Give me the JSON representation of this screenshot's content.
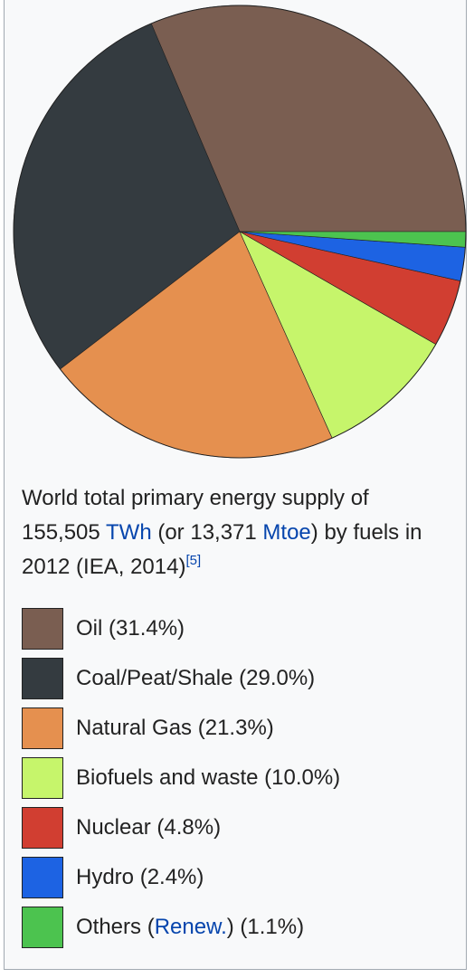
{
  "chart_data": {
    "type": "pie",
    "title": [
      {
        "text": "World total primary energy supply of 155,505 "
      },
      {
        "text": "TWh",
        "link": true
      },
      {
        "text": " (or 13,371 "
      },
      {
        "text": "Mtoe",
        "link": true
      },
      {
        "text": ") by fuels in 2012 (IEA, 2014)"
      },
      {
        "text": "[5]",
        "link": true,
        "sup": true
      }
    ],
    "categories": [
      "Oil",
      "Coal/Peat/Shale",
      "Natural Gas",
      "Biofuels and waste",
      "Nuclear",
      "Hydro",
      [
        {
          "text": "Others ("
        },
        {
          "text": "Renew.",
          "link": true
        },
        {
          "text": ")"
        }
      ]
    ],
    "values": [
      31.4,
      29.0,
      21.3,
      10.0,
      4.8,
      2.4,
      1.1
    ],
    "value_labels": [
      "(31.4%)",
      "(29.0%)",
      "(21.3%)",
      "(10.0%)",
      "(4.8%)",
      "(2.4%)",
      "(1.1%)"
    ],
    "colors": [
      "#7a5e51",
      "#343b40",
      "#e5904f",
      "#c6f56b",
      "#d13e31",
      "#1d63e3",
      "#4cc34f"
    ]
  }
}
